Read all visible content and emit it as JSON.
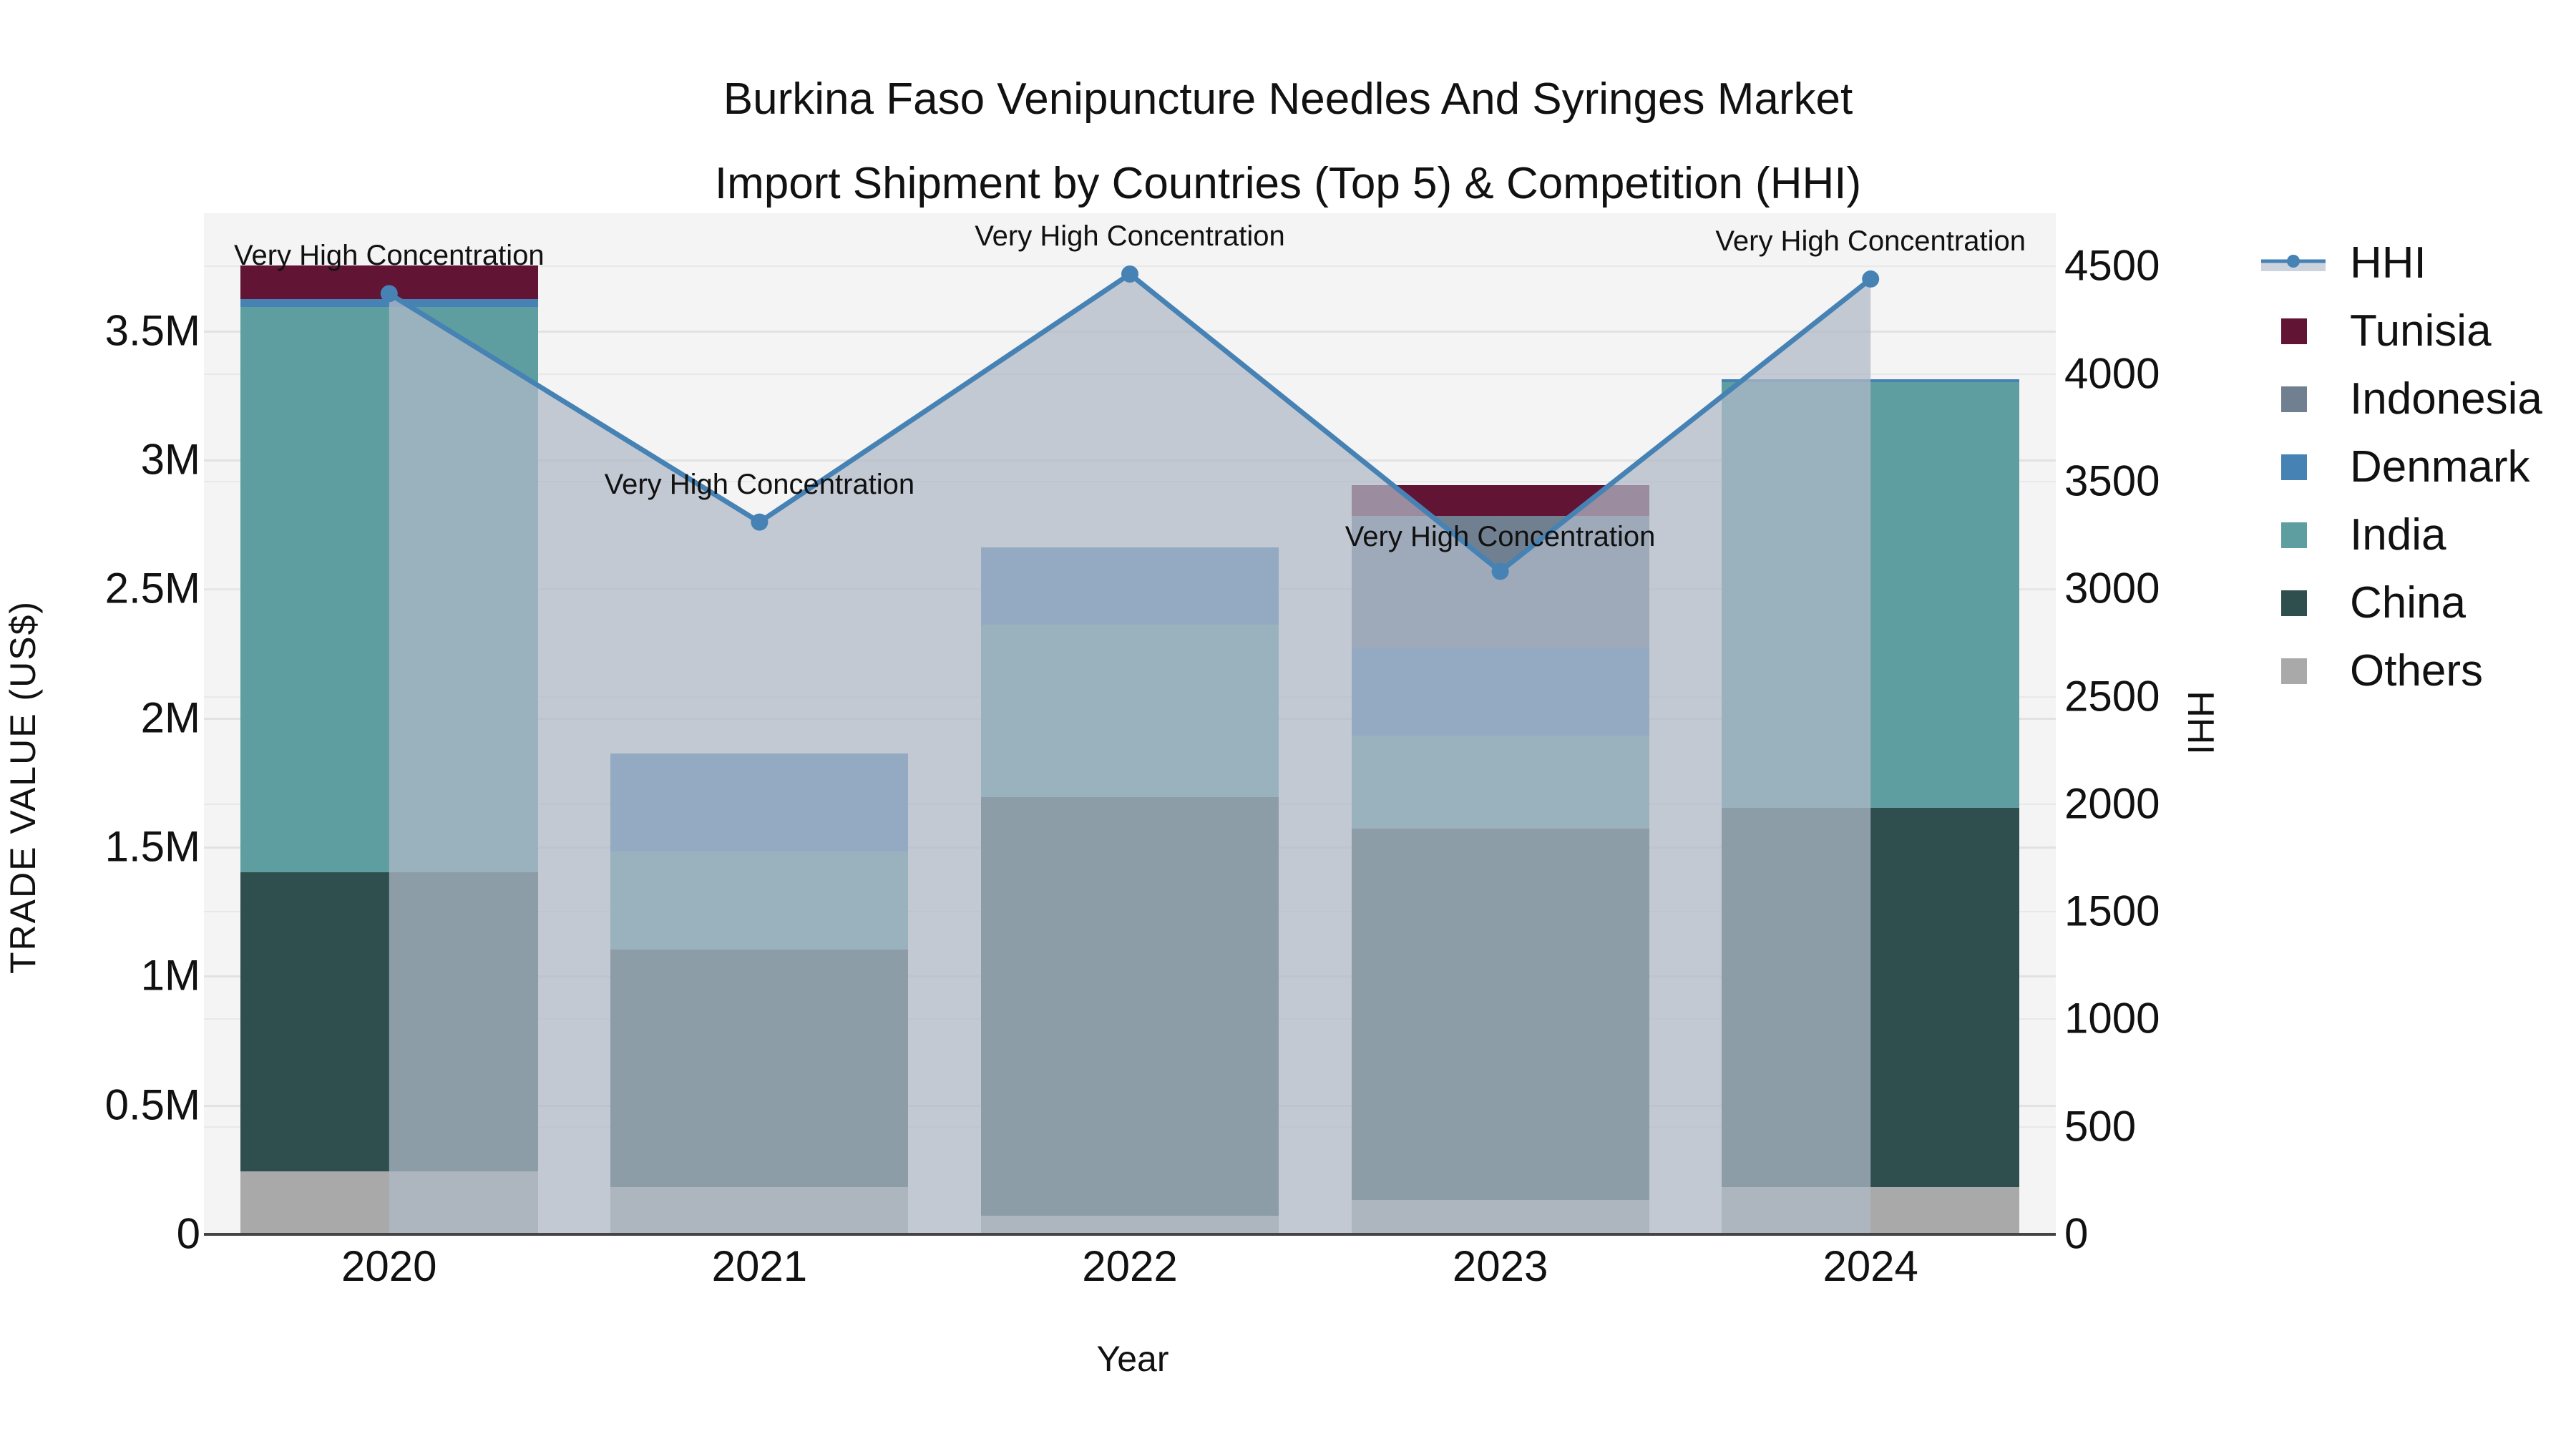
{
  "title": {
    "line1": "Burkina Faso Venipuncture Needles And Syringes Market",
    "line2": "Import Shipment by Countries (Top 5) & Competition (HHI)"
  },
  "axes": {
    "x_label": "Year",
    "y_left_label": "TRADE VALUE (US$)",
    "y_right_label": "HHI",
    "y_left_ticks": [
      "0",
      "0.5M",
      "1M",
      "1.5M",
      "2M",
      "2.5M",
      "3M",
      "3.5M"
    ],
    "y_right_ticks": [
      "0",
      "500",
      "1000",
      "1500",
      "2000",
      "2500",
      "3000",
      "3500",
      "4000",
      "4500"
    ],
    "x_ticks": [
      "2020",
      "2021",
      "2022",
      "2023",
      "2024"
    ]
  },
  "legend": [
    {
      "label": "HHI",
      "type": "line",
      "color": "#4682B4"
    },
    {
      "label": "Tunisia",
      "type": "bar",
      "color": "#611434"
    },
    {
      "label": "Indonesia",
      "type": "bar",
      "color": "#708090"
    },
    {
      "label": "Denmark",
      "type": "bar",
      "color": "#4682B4"
    },
    {
      "label": "India",
      "type": "bar",
      "color": "#5F9EA0"
    },
    {
      "label": "China",
      "type": "bar",
      "color": "#2F4F4F"
    },
    {
      "label": "Others",
      "type": "bar",
      "color": "#A9A9A9"
    }
  ],
  "annotations": [
    {
      "year": "2020",
      "text": "Very High Concentration"
    },
    {
      "year": "2021",
      "text": "Very High Concentration"
    },
    {
      "year": "2022",
      "text": "Very High Concentration"
    },
    {
      "year": "2023",
      "text": "Very High Concentration"
    },
    {
      "year": "2024",
      "text": "Very High Concentration"
    }
  ],
  "chart_data": {
    "type": "bar",
    "stacked": true,
    "title": "Burkina Faso Venipuncture Needles And Syringes Market Import Shipment by Countries (Top 5) & Competition (HHI)",
    "xlabel": "Year",
    "ylabel": "TRADE VALUE (US$)",
    "y2label": "HHI",
    "categories": [
      "2020",
      "2021",
      "2022",
      "2023",
      "2024"
    ],
    "ylim": [
      0,
      3800000
    ],
    "y2lim": [
      0,
      4750
    ],
    "series": [
      {
        "name": "Others",
        "color": "#A9A9A9",
        "values": [
          240000,
          180000,
          70000,
          130000,
          180000
        ]
      },
      {
        "name": "China",
        "color": "#2F4F4F",
        "values": [
          1160000,
          920000,
          1620000,
          1440000,
          1470000
        ]
      },
      {
        "name": "India",
        "color": "#5F9EA0",
        "values": [
          2190000,
          380000,
          670000,
          360000,
          1650000
        ]
      },
      {
        "name": "Denmark",
        "color": "#4682B4",
        "values": [
          30000,
          380000,
          300000,
          340000,
          10000
        ]
      },
      {
        "name": "Indonesia",
        "color": "#708090",
        "values": [
          0,
          0,
          0,
          510000,
          0
        ]
      },
      {
        "name": "Tunisia",
        "color": "#611434",
        "values": [
          130000,
          0,
          0,
          120000,
          0
        ]
      }
    ],
    "line_series": {
      "name": "HHI",
      "axis": "right",
      "color": "#4682B4",
      "values": [
        4370,
        3308,
        4461,
        3079,
        4438
      ],
      "labels": [
        "Very High Concentration",
        "Very High Concentration",
        "Very High Concentration",
        "Very High Concentration",
        "Very High Concentration"
      ]
    },
    "grid": true,
    "legend_position": "right"
  }
}
